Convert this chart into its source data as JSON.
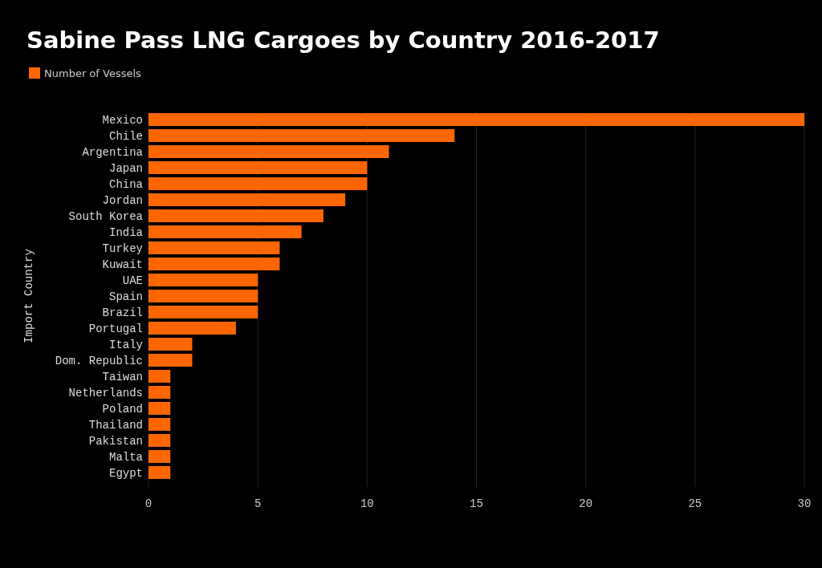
{
  "chart_data": {
    "type": "bar",
    "orientation": "horizontal",
    "title": "Sabine Pass LNG Cargoes by Country 2016-2017",
    "ylabel": "Import Country",
    "categories": [
      "Mexico",
      "Chile",
      "Argentina",
      "Japan",
      "China",
      "Jordan",
      "South Korea",
      "India",
      "Turkey",
      "Kuwait",
      "UAE",
      "Spain",
      "Brazil",
      "Portugal",
      "Italy",
      "Dom. Republic",
      "Taiwan",
      "Netherlands",
      "Poland",
      "Thailand",
      "Pakistan",
      "Malta",
      "Egypt"
    ],
    "series": [
      {
        "name": "Number of Vessels",
        "color": "#ff6600",
        "values": [
          30,
          14,
          11,
          10,
          10,
          9,
          8,
          7,
          6,
          6,
          5,
          5,
          5,
          4,
          2,
          2,
          1,
          1,
          1,
          1,
          1,
          1,
          1
        ]
      }
    ],
    "xlim": [
      0,
      30
    ],
    "xticks": [
      0,
      5,
      10,
      15,
      20,
      25,
      30
    ],
    "grid": "x",
    "legend": "top left"
  }
}
